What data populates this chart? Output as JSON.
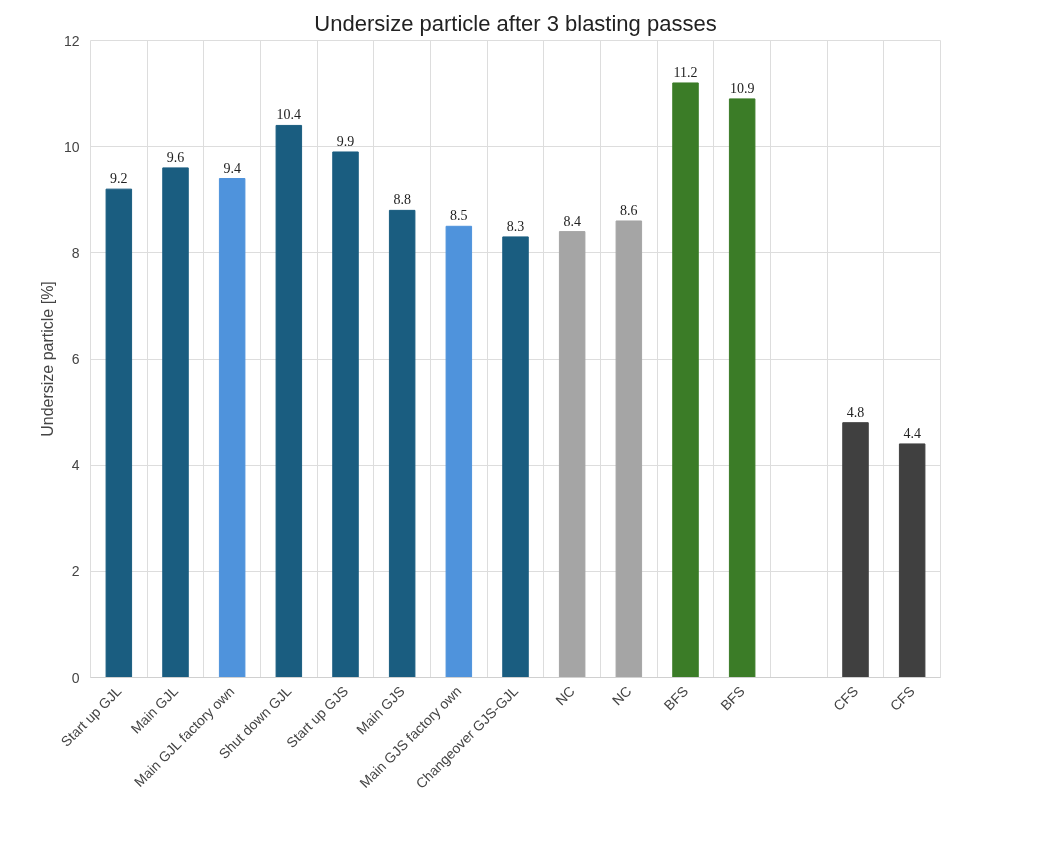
{
  "chart_data": {
    "type": "bar",
    "title": "Undersize particle after 3 blasting passes",
    "ylabel": "Undersize particle [%]",
    "categories": [
      "Start up GJL",
      "Main GJL",
      "Main GJL factory own",
      "Shut down GJL",
      "Start up GJS",
      "Main GJS",
      "Main GJS factory own",
      "Changeover GJS-GJL",
      "NC",
      "NC",
      "BFS",
      "BFS",
      null,
      "CFS",
      "CFS"
    ],
    "values": [
      9.2,
      9.6,
      9.4,
      10.4,
      9.9,
      8.8,
      8.5,
      8.3,
      8.4,
      8.6,
      11.2,
      10.9,
      null,
      4.8,
      4.4
    ],
    "colors": [
      "#1a5d80",
      "#1a5d80",
      "#4f93dc",
      "#1a5d80",
      "#1a5d80",
      "#1a5d80",
      "#4f93dc",
      "#1a5d80",
      "#a5a5a5",
      "#a5a5a5",
      "#3b7c27",
      "#3b7c27",
      "#404040",
      "#404040",
      "#404040"
    ],
    "ylim": [
      0,
      12
    ],
    "yticks": [
      0,
      2,
      4,
      6,
      8,
      10,
      12
    ],
    "grid": true,
    "data_labels": true
  }
}
